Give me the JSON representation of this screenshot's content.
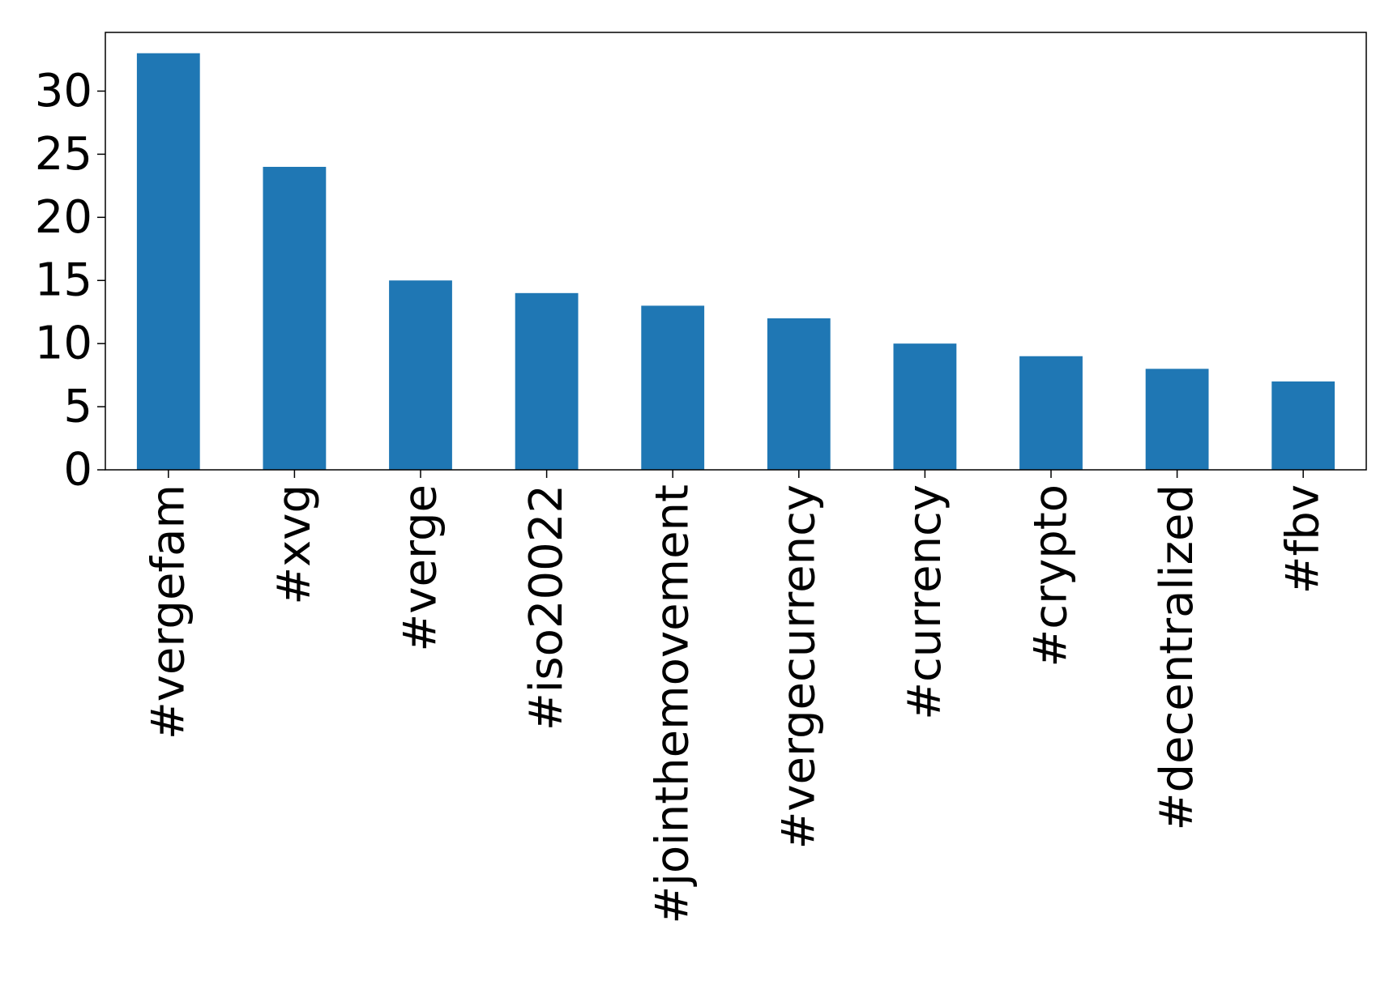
{
  "chart_data": {
    "type": "bar",
    "title": "",
    "xlabel": "",
    "ylabel": "",
    "categories": [
      "#vergefam",
      "#xvg",
      "#verge",
      "#iso20022",
      "#jointhemovement",
      "#vergecurrency",
      "#currency",
      "#crypto",
      "#decentralized",
      "#fbv"
    ],
    "values": [
      33,
      24,
      15,
      14,
      13,
      12,
      10,
      9,
      8,
      7
    ],
    "ylim": [
      0,
      34.65
    ],
    "yticks": [
      0,
      5,
      10,
      15,
      20,
      25,
      30
    ],
    "grid": false,
    "legend": "none",
    "bar_color": "#1f77b4"
  }
}
